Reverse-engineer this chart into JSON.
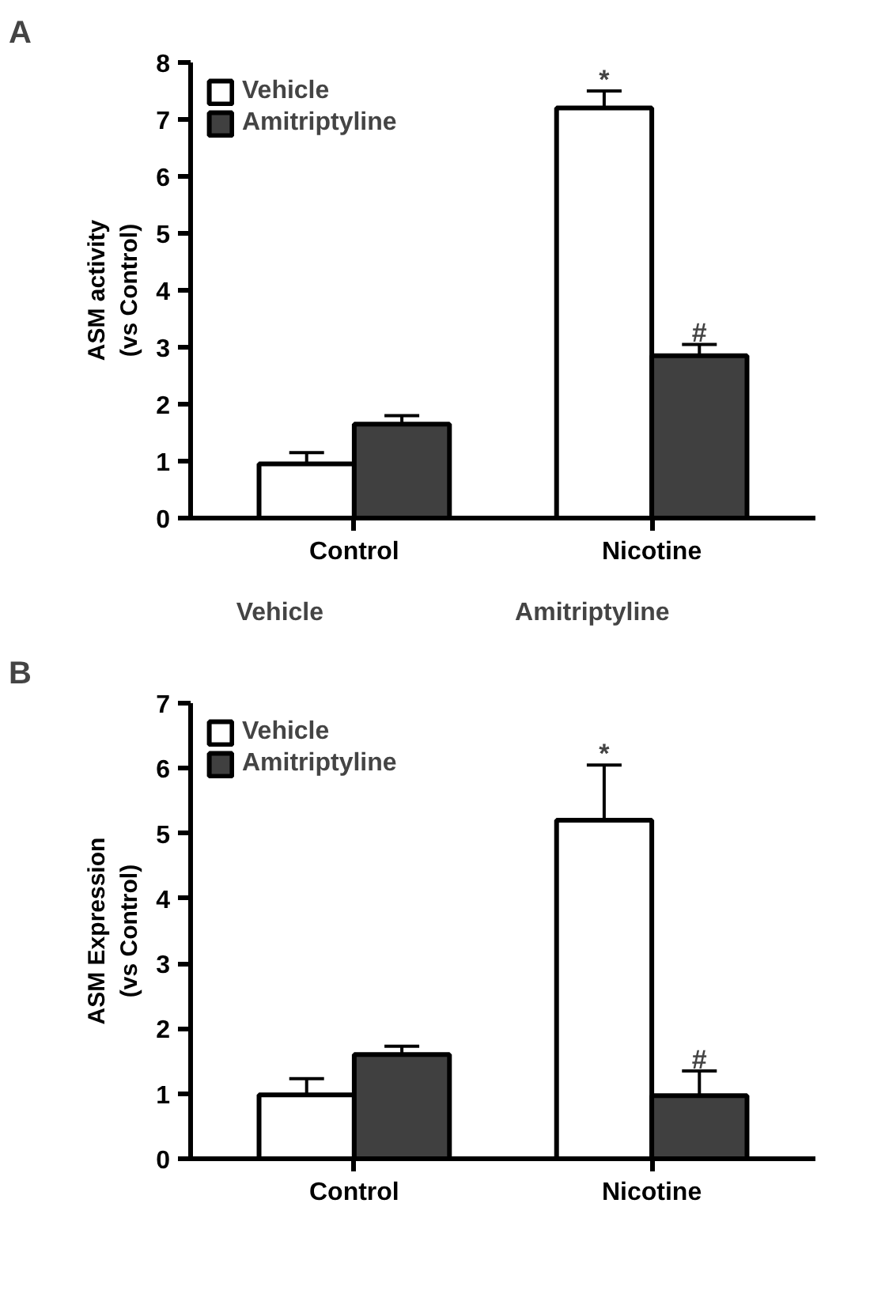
{
  "chart_data": [
    {
      "type": "bar",
      "title": "A",
      "ylabel": "ASM activity\n(vs Control)",
      "categories": [
        "Control",
        "Nicotine"
      ],
      "ylim": [
        0,
        8
      ],
      "yticks": [
        0,
        1,
        2,
        3,
        4,
        5,
        6,
        7,
        8
      ],
      "legend": "top left",
      "grid": false,
      "series": [
        {
          "name": "Vehicle",
          "color": "#ffffff",
          "values": [
            0.95,
            7.2
          ],
          "errors": [
            0.2,
            0.3
          ]
        },
        {
          "name": "Amitriptyline",
          "color": "#404040",
          "values": [
            1.65,
            2.85
          ],
          "errors": [
            0.15,
            0.2
          ]
        }
      ],
      "annotations": [
        "*",
        "#",
        "Vehicle",
        "Amitriptyline"
      ]
    },
    {
      "type": "bar",
      "title": "B",
      "ylabel": "ASM Expression\n(vs Control)",
      "categories": [
        "Control",
        "Nicotine"
      ],
      "ylim": [
        0,
        7
      ],
      "yticks": [
        0,
        1,
        2,
        3,
        4,
        5,
        6,
        7
      ],
      "legend": "top left",
      "grid": false,
      "series": [
        {
          "name": "Vehicle",
          "color": "#ffffff",
          "values": [
            0.98,
            5.2
          ],
          "errors": [
            0.25,
            0.85
          ]
        },
        {
          "name": "Amitriptyline",
          "color": "#404040",
          "values": [
            1.6,
            0.97
          ],
          "errors": [
            0.13,
            0.38
          ]
        }
      ],
      "annotations": [
        "*",
        "#"
      ]
    }
  ]
}
